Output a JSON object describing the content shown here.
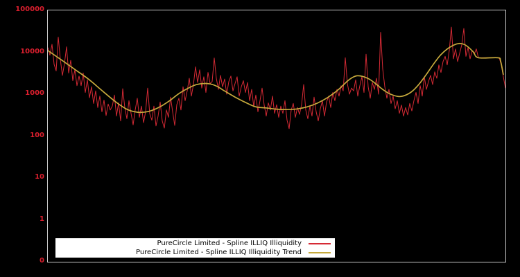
{
  "figure": {
    "background": "#000000",
    "frame_color": "#c8c8c8"
  },
  "chart_data": {
    "type": "line",
    "title": "",
    "xlabel": "",
    "ylabel": "",
    "grid": false,
    "yscale": "log",
    "ylim": [
      0.1,
      100000
    ],
    "x_domain": [
      0,
      661
    ],
    "tick_label_color": "#dc1f2e",
    "yticks": [
      {
        "label": "100000",
        "value": 100000
      },
      {
        "label": "10000",
        "value": 10000
      },
      {
        "label": "1000",
        "value": 1000
      },
      {
        "label": "100",
        "value": 100
      },
      {
        "label": "10",
        "value": 10
      },
      {
        "label": "1",
        "value": 1
      },
      {
        "label": "0",
        "value": 0.1
      }
    ],
    "legend": {
      "position": "bottom-center",
      "background": "#ffffff"
    },
    "series": [
      {
        "name": "PureCircle Limited - Spline ILLIQ Illiquidity",
        "color": "#d62a35",
        "line_width": 1,
        "smooth": false,
        "values": [
          13000,
          8500,
          15500,
          5200,
          3600,
          23000,
          6800,
          2800,
          5400,
          13500,
          3200,
          6400,
          2100,
          3800,
          1600,
          2700,
          1600,
          3200,
          1100,
          2200,
          820,
          1500,
          600,
          1200,
          480,
          900,
          380,
          720,
          310,
          580,
          420,
          520,
          950,
          300,
          620,
          230,
          1350,
          480,
          260,
          700,
          350,
          185,
          420,
          800,
          280,
          520,
          210,
          380,
          1400,
          340,
          240,
          520,
          175,
          300,
          650,
          230,
          155,
          420,
          280,
          850,
          380,
          180,
          560,
          800,
          420,
          1500,
          700,
          1200,
          2400,
          900,
          1700,
          4500,
          1900,
          3800,
          1400,
          2600,
          1100,
          3300,
          1800,
          2000,
          7300,
          2400,
          1300,
          2800,
          1500,
          2300,
          1000,
          2000,
          2700,
          1200,
          1800,
          2600,
          900,
          1500,
          2100,
          1100,
          1900,
          700,
          1300,
          500,
          950,
          380,
          700,
          1400,
          550,
          300,
          620,
          420,
          900,
          350,
          560,
          280,
          520,
          350,
          700,
          240,
          150,
          420,
          600,
          280,
          480,
          330,
          560,
          1700,
          420,
          260,
          520,
          300,
          850,
          380,
          230,
          450,
          700,
          300,
          650,
          900,
          480,
          1100,
          700,
          1300,
          900,
          1600,
          1200,
          7400,
          1800,
          1000,
          1400,
          1200,
          2200,
          900,
          1600,
          2600,
          1100,
          9000,
          1500,
          800,
          1900,
          1300,
          2400,
          1000,
          30000,
          4000,
          1500,
          800,
          1300,
          600,
          900,
          450,
          700,
          350,
          550,
          300,
          480,
          320,
          600,
          400,
          700,
          1100,
          600,
          1600,
          900,
          2600,
          1300,
          2000,
          2800,
          1700,
          3400,
          2400,
          5000,
          3300,
          6000,
          8000,
          5000,
          11000,
          40000,
          7000,
          12000,
          6000,
          9500,
          15000,
          37000,
          8000,
          13000,
          7000,
          11000,
          9000,
          12000,
          7400,
          7400,
          7400,
          7400,
          7400,
          7400,
          7400,
          7400,
          7400,
          7400,
          7400,
          5000,
          2600,
          1400
        ]
      },
      {
        "name": "PureCircle Limited - Spline ILLIQ Illiquidity Trend",
        "color": "#c6a93c",
        "line_width": 1.7,
        "smooth": true,
        "points": [
          [
            0,
            11000
          ],
          [
            20,
            6500
          ],
          [
            40,
            3800
          ],
          [
            60,
            2200
          ],
          [
            80,
            1150
          ],
          [
            100,
            620
          ],
          [
            115,
            430
          ],
          [
            130,
            370
          ],
          [
            145,
            385
          ],
          [
            160,
            480
          ],
          [
            175,
            680
          ],
          [
            190,
            1050
          ],
          [
            205,
            1450
          ],
          [
            215,
            1700
          ],
          [
            225,
            1800
          ],
          [
            235,
            1750
          ],
          [
            245,
            1520
          ],
          [
            255,
            1200
          ],
          [
            270,
            860
          ],
          [
            285,
            640
          ],
          [
            300,
            500
          ],
          [
            315,
            470
          ],
          [
            330,
            440
          ],
          [
            345,
            430
          ],
          [
            360,
            445
          ],
          [
            375,
            500
          ],
          [
            390,
            620
          ],
          [
            405,
            850
          ],
          [
            420,
            1300
          ],
          [
            432,
            2000
          ],
          [
            440,
            2500
          ],
          [
            447,
            2750
          ],
          [
            455,
            2650
          ],
          [
            465,
            2250
          ],
          [
            475,
            1700
          ],
          [
            485,
            1250
          ],
          [
            495,
            1000
          ],
          [
            507,
            880
          ],
          [
            517,
            950
          ],
          [
            527,
            1200
          ],
          [
            537,
            1800
          ],
          [
            547,
            3000
          ],
          [
            557,
            5200
          ],
          [
            567,
            8500
          ],
          [
            577,
            12000
          ],
          [
            587,
            15000
          ],
          [
            594,
            16200
          ],
          [
            601,
            15500
          ],
          [
            608,
            13000
          ],
          [
            615,
            10000
          ],
          [
            622,
            7400
          ],
          [
            650,
            7400
          ],
          [
            654,
            6200
          ],
          [
            658,
            2900
          ]
        ]
      }
    ]
  }
}
